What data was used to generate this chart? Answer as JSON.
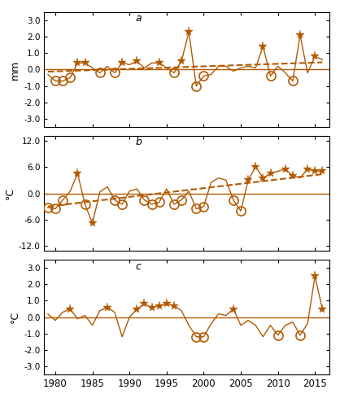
{
  "years": [
    1979,
    1980,
    1981,
    1982,
    1983,
    1984,
    1985,
    1986,
    1987,
    1988,
    1989,
    1990,
    1991,
    1992,
    1993,
    1994,
    1995,
    1996,
    1997,
    1998,
    1999,
    2000,
    2001,
    2002,
    2003,
    2004,
    2005,
    2006,
    2007,
    2008,
    2009,
    2010,
    2011,
    2012,
    2013,
    2014,
    2015,
    2016
  ],
  "precip": [
    -0.3,
    -0.7,
    -0.7,
    -0.5,
    0.4,
    0.4,
    0.1,
    -0.2,
    0.2,
    -0.2,
    0.4,
    0.3,
    0.5,
    0.1,
    0.4,
    0.4,
    0.1,
    -0.2,
    0.5,
    2.3,
    -1.0,
    -0.4,
    -0.3,
    0.2,
    0.2,
    -0.1,
    0.1,
    0.2,
    0.1,
    1.4,
    -0.4,
    0.2,
    -0.2,
    -0.7,
    2.1,
    -0.2,
    0.8,
    0.6
  ],
  "precip_star": [
    false,
    false,
    false,
    false,
    true,
    true,
    false,
    false,
    false,
    false,
    true,
    false,
    true,
    false,
    false,
    true,
    false,
    false,
    true,
    true,
    false,
    false,
    false,
    false,
    false,
    false,
    false,
    false,
    false,
    true,
    false,
    false,
    false,
    false,
    true,
    false,
    true,
    false
  ],
  "precip_circle": [
    false,
    true,
    true,
    true,
    false,
    false,
    false,
    true,
    false,
    true,
    false,
    false,
    false,
    false,
    false,
    false,
    false,
    true,
    false,
    false,
    true,
    true,
    false,
    false,
    false,
    false,
    false,
    false,
    false,
    false,
    true,
    false,
    false,
    true,
    false,
    false,
    false,
    false
  ],
  "temp": [
    -3.2,
    -3.5,
    -1.5,
    0.5,
    4.5,
    -2.5,
    -6.8,
    0.3,
    1.5,
    -1.5,
    -2.5,
    0.5,
    1.0,
    -1.5,
    -2.5,
    -2.0,
    1.0,
    -2.5,
    -1.5,
    0.5,
    -3.5,
    -3.0,
    2.5,
    3.5,
    3.0,
    -1.5,
    -4.0,
    3.0,
    6.0,
    3.5,
    4.5,
    5.0,
    5.5,
    4.0,
    3.5,
    5.5,
    5.0,
    5.0
  ],
  "temp_star": [
    false,
    false,
    false,
    false,
    true,
    false,
    true,
    false,
    false,
    false,
    false,
    false,
    false,
    false,
    false,
    false,
    false,
    false,
    false,
    false,
    false,
    false,
    false,
    false,
    false,
    false,
    false,
    true,
    true,
    true,
    true,
    false,
    true,
    true,
    false,
    true,
    true,
    true
  ],
  "temp_circle": [
    true,
    true,
    true,
    false,
    false,
    true,
    false,
    false,
    false,
    true,
    true,
    false,
    false,
    true,
    true,
    true,
    false,
    true,
    true,
    false,
    true,
    true,
    false,
    false,
    false,
    true,
    true,
    false,
    false,
    false,
    false,
    false,
    false,
    false,
    false,
    false,
    false,
    false
  ],
  "nino3": [
    0.2,
    -0.2,
    0.3,
    0.5,
    -0.1,
    0.1,
    -0.5,
    0.4,
    0.6,
    0.3,
    -1.2,
    0.0,
    0.5,
    0.8,
    0.6,
    0.7,
    0.8,
    0.7,
    0.4,
    -0.5,
    -1.2,
    -1.2,
    -0.4,
    0.2,
    0.1,
    0.5,
    -0.5,
    -0.2,
    -0.5,
    -1.2,
    -0.5,
    -1.1,
    -0.5,
    -0.3,
    -1.1,
    -0.4,
    2.5,
    0.5
  ],
  "nino3_star": [
    false,
    false,
    false,
    true,
    false,
    false,
    false,
    false,
    true,
    false,
    false,
    false,
    true,
    true,
    true,
    true,
    true,
    true,
    false,
    false,
    false,
    false,
    false,
    false,
    false,
    true,
    false,
    false,
    false,
    false,
    false,
    false,
    false,
    false,
    false,
    false,
    true,
    true
  ],
  "nino3_circle": [
    false,
    false,
    false,
    false,
    false,
    false,
    false,
    false,
    false,
    false,
    false,
    false,
    false,
    false,
    false,
    false,
    false,
    false,
    false,
    false,
    true,
    true,
    false,
    false,
    false,
    false,
    false,
    false,
    false,
    false,
    false,
    true,
    false,
    false,
    true,
    false,
    false,
    false
  ],
  "color": "#b35900",
  "background": "#ffffff",
  "panel_a_ylim": [
    -3.5,
    3.5
  ],
  "panel_b_ylim": [
    -13.0,
    13.0
  ],
  "panel_c_ylim": [
    -3.5,
    3.5
  ],
  "panel_a_yticks": [
    -3.0,
    -2.0,
    -1.0,
    0.0,
    1.0,
    2.0,
    3.0
  ],
  "panel_b_yticks": [
    -12.0,
    -6.0,
    0.0,
    6.0,
    12.0
  ],
  "panel_c_yticks": [
    -3.0,
    -2.0,
    -1.0,
    0.0,
    1.0,
    2.0,
    3.0
  ],
  "xlabel_years": [
    1980,
    1985,
    1990,
    1995,
    2000,
    2005,
    2010,
    2015
  ],
  "panel_labels": [
    "a",
    "b",
    "c"
  ],
  "ylabel_a": "mm",
  "ylabel_b": "°C",
  "ylabel_c": "°C"
}
